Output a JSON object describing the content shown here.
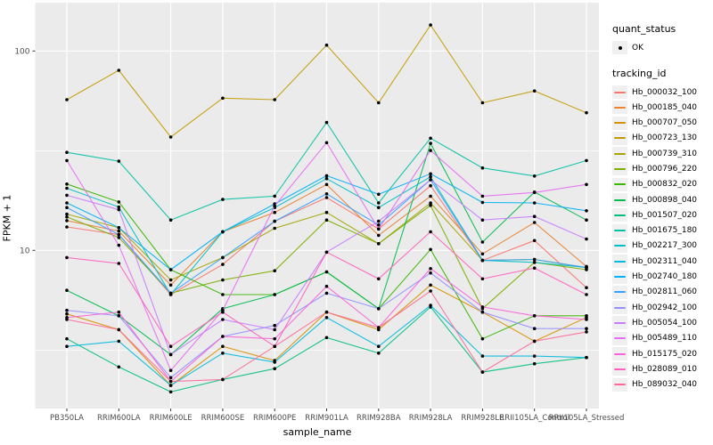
{
  "figure": {
    "background": "#FFFFFF",
    "panel_background": "#EBEBEB",
    "grid_color": "#FFFFFF",
    "axis_text_color": "#4D4D4D",
    "point_color": "#000000"
  },
  "legend": {
    "quant_title": "quant_status",
    "quant_items": [
      {
        "label": "OK",
        "marker": "black-point"
      }
    ],
    "tracking_title": "tracking_id"
  },
  "chart_data": {
    "type": "line",
    "title": "",
    "xlabel": "sample_name",
    "ylabel": "FPKM + 1",
    "y_scale": "log10",
    "ylim": [
      1.6,
      175
    ],
    "y_ticks": [
      10,
      100
    ],
    "y_minor_gridlines": [
      3.162,
      31.62
    ],
    "grid": "on",
    "legend_position": "right",
    "point_marker": "small black dot (quant_status OK)",
    "categories": [
      "PB350LA",
      "RRIM600LA",
      "RRIM600LE",
      "RRIM600SE",
      "RRIM600PE",
      "RRIM901LA",
      "RRIM928BA",
      "RRIM928LA",
      "RRIM928LE",
      "RRII105LA_Control",
      "RRII105LA_Stressed"
    ],
    "series": [
      {
        "name": "Hb_000032_100",
        "color": "#F8766D",
        "values": [
          13.1,
          12.0,
          6.0,
          8.5,
          14.0,
          18.4,
          12.8,
          21.1,
          8.9,
          11.2,
          6.5
        ]
      },
      {
        "name": "Hb_000185_040",
        "color": "#EA8331",
        "values": [
          14.1,
          12.5,
          6.7,
          12.4,
          15.5,
          21.4,
          11.9,
          18.7,
          9.6,
          13.8,
          8.3
        ]
      },
      {
        "name": "Hb_000707_050",
        "color": "#D89000",
        "values": [
          4.8,
          4.0,
          2.1,
          3.3,
          2.8,
          4.9,
          4.0,
          6.7,
          4.9,
          3.5,
          4.6
        ]
      },
      {
        "name": "Hb_000723_130",
        "color": "#C09B00",
        "values": [
          57,
          80,
          37,
          58,
          57,
          107,
          55,
          135,
          55,
          63,
          49
        ]
      },
      {
        "name": "Hb_000739_310",
        "color": "#A3A500",
        "values": [
          15.2,
          13.0,
          7.1,
          9.2,
          12.9,
          15.5,
          10.8,
          17.3,
          8.9,
          9.0,
          8.2
        ]
      },
      {
        "name": "Hb_000796_220",
        "color": "#7CAE00",
        "values": [
          14.7,
          11.6,
          6.1,
          7.1,
          7.9,
          14.2,
          10.8,
          16.8,
          5.1,
          8.7,
          8.0
        ]
      },
      {
        "name": "Hb_000832_020",
        "color": "#39B600",
        "values": [
          21.5,
          17.5,
          8.0,
          6.0,
          6.0,
          7.8,
          5.1,
          10.1,
          3.6,
          4.7,
          4.7
        ]
      },
      {
        "name": "Hb_000898_040",
        "color": "#00BB4E",
        "values": [
          6.3,
          4.7,
          3.0,
          5.1,
          6.0,
          7.8,
          5.1,
          34.4,
          11.0,
          19.6,
          14.2
        ]
      },
      {
        "name": "Hb_001507_020",
        "color": "#00BF7D",
        "values": [
          3.6,
          2.6,
          1.95,
          2.25,
          2.55,
          3.65,
          3.05,
          5.2,
          2.45,
          2.7,
          2.9
        ]
      },
      {
        "name": "Hb_001675_180",
        "color": "#00C1A3",
        "values": [
          31,
          28,
          14.2,
          18.0,
          18.7,
          43.8,
          17.3,
          36.5,
          25.9,
          23.6,
          28.2
        ]
      },
      {
        "name": "Hb_002217_300",
        "color": "#00BFC4",
        "values": [
          20.5,
          16.5,
          6.0,
          12.4,
          16.4,
          22.9,
          16.4,
          23.4,
          8.9,
          8.7,
          8.2
        ]
      },
      {
        "name": "Hb_002311_040",
        "color": "#00BAE0",
        "values": [
          3.3,
          3.5,
          2.1,
          3.05,
          2.75,
          4.6,
          3.3,
          5.3,
          2.95,
          2.95,
          2.9
        ]
      },
      {
        "name": "Hb_002740_180",
        "color": "#00B0F6",
        "values": [
          17.3,
          13.0,
          8.0,
          12.4,
          17.1,
          23.7,
          19.1,
          24.2,
          17.4,
          17.3,
          15.8
        ]
      },
      {
        "name": "Hb_002811_060",
        "color": "#35A2FF",
        "values": [
          16.4,
          12.0,
          6.1,
          9.2,
          14.0,
          19.2,
          13.4,
          22.6,
          8.9,
          9.0,
          8.2
        ]
      },
      {
        "name": "Hb_002942_100",
        "color": "#9590FF",
        "values": [
          5.0,
          4.7,
          2.3,
          3.7,
          4.2,
          6.1,
          5.1,
          7.7,
          4.9,
          4.05,
          4.05
        ]
      },
      {
        "name": "Hb_005054_100",
        "color": "#C77CFF",
        "values": [
          18.9,
          16.0,
          3.0,
          4.5,
          4.0,
          9.8,
          14.0,
          22.6,
          14.2,
          14.8,
          11.4
        ]
      },
      {
        "name": "Hb_005489_110",
        "color": "#E76BF3",
        "values": [
          28.2,
          10.6,
          2.5,
          5.0,
          16.7,
          34.7,
          12.8,
          31.7,
          18.7,
          19.5,
          21.4
        ]
      },
      {
        "name": "Hb_015175_020",
        "color": "#FA62DB",
        "values": [
          4.6,
          4.9,
          2.2,
          3.7,
          3.6,
          6.6,
          4.1,
          8.1,
          5.2,
          4.7,
          4.5
        ]
      },
      {
        "name": "Hb_028089_010",
        "color": "#FF62BC",
        "values": [
          9.2,
          8.6,
          3.3,
          4.9,
          3.3,
          9.8,
          7.2,
          12.4,
          7.2,
          8.15,
          6.0
        ]
      },
      {
        "name": "Hb_089032_040",
        "color": "#FF6A98",
        "values": [
          4.5,
          4.0,
          2.2,
          2.25,
          3.3,
          4.9,
          4.1,
          6.25,
          2.45,
          3.5,
          3.9
        ]
      }
    ]
  }
}
